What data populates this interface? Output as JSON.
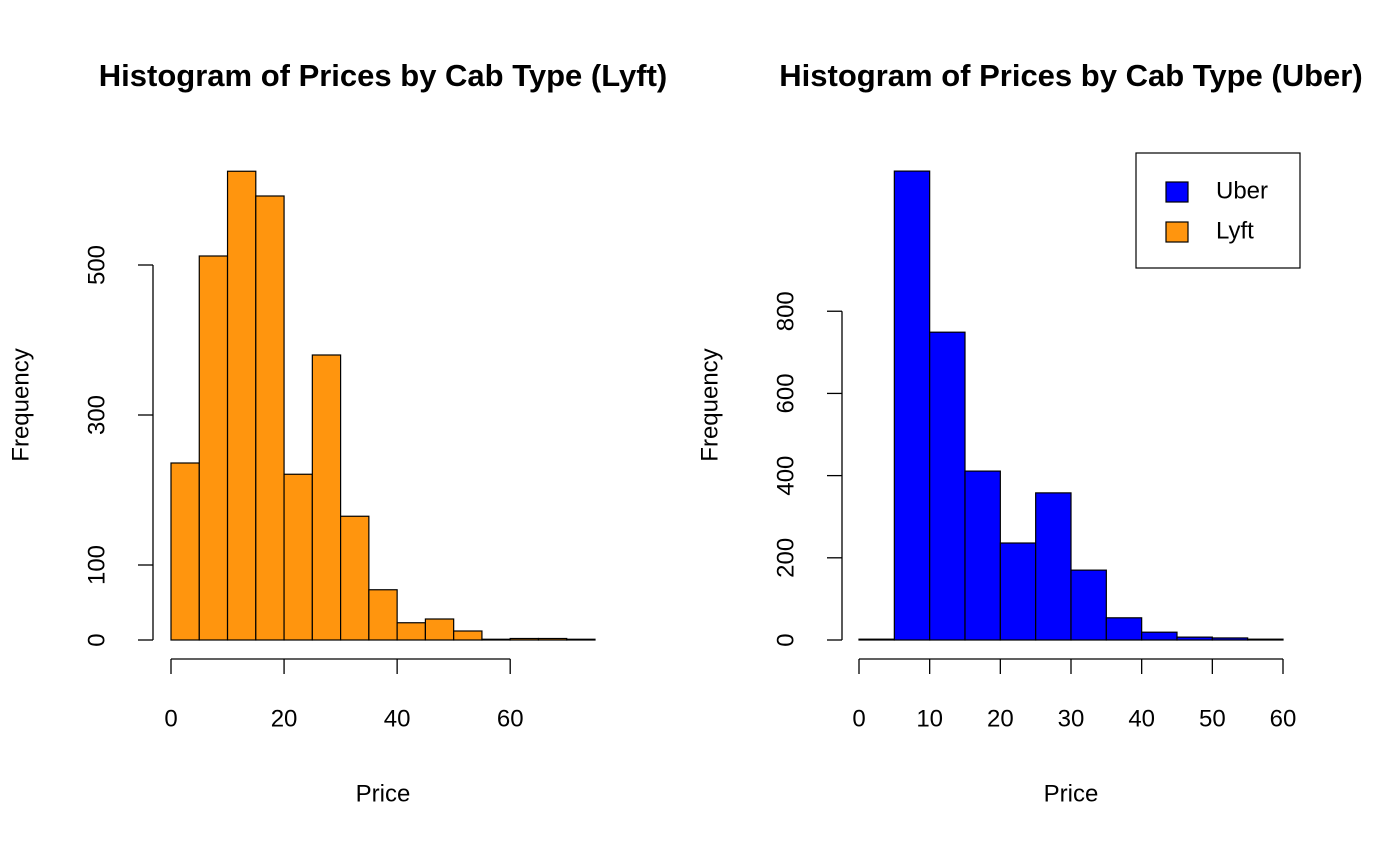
{
  "chart_data": [
    {
      "type": "histogram",
      "title": "Histogram of Prices by Cab Type (Lyft)",
      "x_label": "Price",
      "y_label": "Frequency",
      "bins": [
        0,
        5,
        10,
        15,
        20,
        25,
        30,
        35,
        40,
        45,
        50,
        55,
        60,
        65,
        70,
        75
      ],
      "values": [
        236,
        512,
        625,
        592,
        221,
        380,
        165,
        67,
        23,
        28,
        12,
        1,
        2,
        2,
        1
      ],
      "color": "#ff950e",
      "xlim": [
        0,
        75
      ],
      "xticks": [
        0,
        20,
        40,
        60
      ],
      "ylim": [
        0,
        640
      ],
      "yticks": [
        0,
        100,
        300,
        500
      ]
    },
    {
      "type": "histogram",
      "title": "Histogram of Prices by Cab Type (Uber)",
      "x_label": "Price",
      "y_label": "Frequency",
      "bins": [
        0,
        5,
        10,
        15,
        20,
        25,
        30,
        35,
        40,
        45,
        50,
        55,
        60
      ],
      "values": [
        2,
        1141,
        749,
        411,
        236,
        358,
        170,
        54,
        19,
        7,
        5,
        2
      ],
      "color": "#0000ff",
      "xlim": [
        0,
        60
      ],
      "xticks": [
        0,
        10,
        20,
        30,
        40,
        50,
        60
      ],
      "ylim": [
        0,
        1168
      ],
      "yticks": [
        0,
        200,
        400,
        600,
        800
      ],
      "legend": [
        {
          "name": "Uber",
          "color": "#0000ff"
        },
        {
          "name": "Lyft",
          "color": "#ff950e"
        }
      ],
      "legend_position": "topright"
    }
  ]
}
